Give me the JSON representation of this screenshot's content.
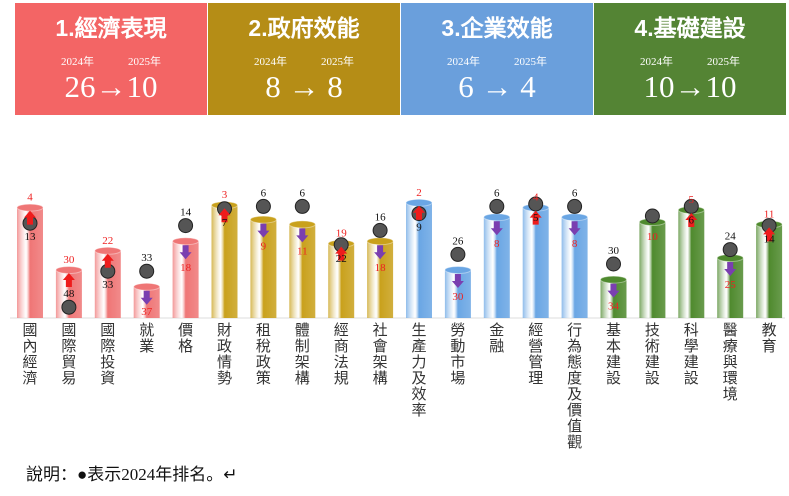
{
  "headers": [
    {
      "title": "1.經濟表現",
      "y1": "2024年",
      "y2": "2025年",
      "rank": "26→10",
      "color": "#f36565"
    },
    {
      "title": "2.政府效能",
      "y1": "2024年",
      "y2": "2025年",
      "rank": "8 → 8",
      "color": "#b58d16"
    },
    {
      "title": "3.企業效能",
      "y1": "2024年",
      "y2": "2025年",
      "rank": "6 → 4",
      "color": "#6a9fdc"
    },
    {
      "title": "4.基礎建設",
      "y1": "2024年",
      "y2": "2025年",
      "rank": "10→10",
      "color": "#548434"
    }
  ],
  "chart_data": {
    "type": "bar",
    "categories": [
      "國內經濟",
      "國際貿易",
      "國際投資",
      "就業",
      "價格",
      "財政情勢",
      "租稅政策",
      "體制架構",
      "經商法規",
      "社會架構",
      "生產力及效率",
      "勞動市場",
      "金融",
      "經營管理",
      "行為態度及價值觀",
      "基本建設",
      "技術建設",
      "科學建設",
      "醫療與環境",
      "教育"
    ],
    "series": [
      {
        "name": "2025",
        "values": [
          4,
          30,
          22,
          37,
          18,
          3,
          9,
          11,
          19,
          18,
          2,
          30,
          8,
          4,
          8,
          34,
          10,
          5,
          25,
          11
        ]
      },
      {
        "name": "2024",
        "values": [
          13,
          48,
          33,
          33,
          14,
          7,
          6,
          6,
          22,
          16,
          9,
          26,
          6,
          5,
          6,
          30,
          10,
          6,
          24,
          14
        ]
      }
    ],
    "groups": [
      0,
      0,
      0,
      0,
      0,
      1,
      1,
      1,
      1,
      1,
      2,
      2,
      2,
      2,
      2,
      3,
      3,
      3,
      3,
      3
    ],
    "group_colors": [
      "#ef7676",
      "#c9a11c",
      "#6aa6e4",
      "#4f8a2e"
    ],
    "up_color": "#ee1c1c",
    "down_color": "#7a3fb0"
  },
  "note": "說明：●表示2024年排名。↵"
}
